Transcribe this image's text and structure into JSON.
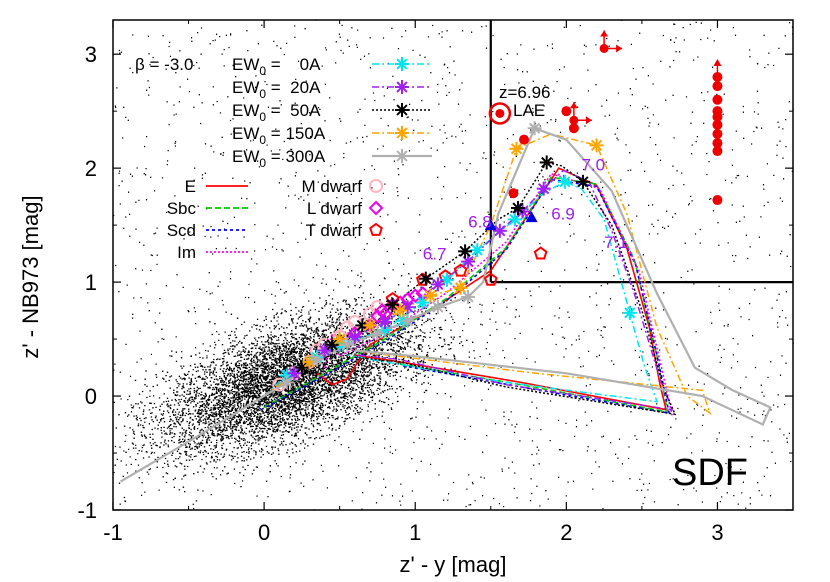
{
  "chart_data": {
    "type": "scatter",
    "panel_label": "SDF",
    "xlabel": "z' - y [mag]",
    "ylabel": "z' - NB973 [mag]",
    "xlim": [
      -1,
      3.5
    ],
    "ylim": [
      -1,
      3.3
    ],
    "x_ticks": [
      "-1",
      "0",
      "1",
      "2",
      "3"
    ],
    "y_ticks": [
      "-1",
      "0",
      "1",
      "2",
      "3"
    ],
    "selection_criteria": {
      "x_min": 1.5,
      "y_min": 1.0
    },
    "beta_label": "β = -3.0",
    "lae_tracks": [
      {
        "name": "EW0 = 0A",
        "label_main": "EW",
        "label_sub": "0",
        "label_rest": " =    0A",
        "color": "#00e5ee",
        "marker": "asterisk",
        "redshift_points": [
          [
            2.42,
            0.73
          ],
          [
            1.99,
            1.88
          ],
          [
            1.66,
            1.55
          ],
          [
            1.41,
            1.28
          ],
          [
            1.21,
            1.02
          ],
          [
            1.05,
            0.82
          ],
          [
            0.92,
            0.66
          ],
          [
            0.8,
            0.58
          ],
          [
            0.5,
            0.45
          ],
          [
            0.35,
            0.34
          ],
          [
            0.15,
            0.18
          ]
        ],
        "curve": [
          [
            0.0,
            0.0
          ],
          [
            0.15,
            0.18
          ],
          [
            0.35,
            0.34
          ],
          [
            0.5,
            0.45
          ],
          [
            0.8,
            0.58
          ],
          [
            1.05,
            0.82
          ],
          [
            1.21,
            1.02
          ],
          [
            1.41,
            1.28
          ],
          [
            1.66,
            1.55
          ],
          [
            1.85,
            1.78
          ],
          [
            1.99,
            1.88
          ],
          [
            2.1,
            1.82
          ],
          [
            2.25,
            1.55
          ],
          [
            2.42,
            0.73
          ],
          [
            2.52,
            0.25
          ],
          [
            2.6,
            -0.05
          ],
          [
            1.6,
            0.12
          ],
          [
            0.8,
            0.3
          ],
          [
            0.55,
            0.36
          ]
        ]
      },
      {
        "name": "EW0 = 20A",
        "label_main": "EW",
        "label_sub": "0",
        "label_rest": " =  20A",
        "color": "#a020f0",
        "marker": "asterisk",
        "redshift_points": [
          [
            1.85,
            1.82
          ],
          [
            1.71,
            1.62
          ],
          [
            1.56,
            1.45
          ],
          [
            1.35,
            1.18
          ],
          [
            1.15,
            0.98
          ],
          [
            0.95,
            0.78
          ],
          [
            0.8,
            0.65
          ],
          [
            0.6,
            0.52
          ],
          [
            0.4,
            0.4
          ],
          [
            0.2,
            0.2
          ]
        ],
        "curve": [
          [
            0.0,
            0.0
          ],
          [
            0.2,
            0.2
          ],
          [
            0.4,
            0.4
          ],
          [
            0.6,
            0.52
          ],
          [
            0.8,
            0.65
          ],
          [
            0.95,
            0.78
          ],
          [
            1.15,
            0.98
          ],
          [
            1.35,
            1.18
          ],
          [
            1.56,
            1.45
          ],
          [
            1.71,
            1.62
          ],
          [
            1.85,
            1.82
          ],
          [
            1.98,
            1.98
          ],
          [
            2.15,
            1.88
          ],
          [
            2.3,
            1.45
          ],
          [
            2.45,
            0.9
          ],
          [
            2.62,
            0.15
          ],
          [
            2.7,
            -0.12
          ],
          [
            1.6,
            0.1
          ],
          [
            0.9,
            0.32
          ],
          [
            0.62,
            0.36
          ]
        ]
      },
      {
        "name": "EW0 = 50A",
        "label_main": "EW",
        "label_sub": "0",
        "label_rest": " =  50A",
        "color": "#000000",
        "marker": "asterisk",
        "redshift_points": [
          [
            2.11,
            1.88
          ],
          [
            1.87,
            2.05
          ],
          [
            1.68,
            1.65
          ],
          [
            1.33,
            1.27
          ],
          [
            1.07,
            1.03
          ],
          [
            0.85,
            0.8
          ],
          [
            0.65,
            0.62
          ],
          [
            0.45,
            0.45
          ],
          [
            0.25,
            0.25
          ]
        ],
        "curve": [
          [
            0.0,
            0.0
          ],
          [
            0.25,
            0.25
          ],
          [
            0.45,
            0.45
          ],
          [
            0.65,
            0.62
          ],
          [
            0.85,
            0.8
          ],
          [
            1.07,
            1.03
          ],
          [
            1.33,
            1.27
          ],
          [
            1.55,
            1.55
          ],
          [
            1.68,
            1.65
          ],
          [
            1.87,
            2.05
          ],
          [
            1.97,
            2.02
          ],
          [
            2.11,
            1.88
          ],
          [
            2.3,
            1.5
          ],
          [
            2.5,
            0.75
          ],
          [
            2.65,
            0.05
          ],
          [
            2.72,
            -0.16
          ],
          [
            1.6,
            0.08
          ],
          [
            0.9,
            0.3
          ],
          [
            0.6,
            0.34
          ]
        ]
      },
      {
        "name": "EW0 = 150A",
        "label_main": "EW",
        "label_sub": "0",
        "label_rest": " = 150A",
        "color": "#ffa500",
        "marker": "asterisk",
        "redshift_points": [
          [
            2.2,
            2.2
          ],
          [
            1.67,
            2.17
          ],
          [
            1.3,
            0.95
          ],
          [
            1.1,
            0.88
          ],
          [
            0.9,
            0.75
          ],
          [
            0.7,
            0.62
          ],
          [
            0.5,
            0.5
          ],
          [
            0.3,
            0.3
          ]
        ],
        "curve": [
          [
            0.0,
            0.0
          ],
          [
            0.3,
            0.3
          ],
          [
            0.5,
            0.5
          ],
          [
            0.7,
            0.62
          ],
          [
            0.9,
            0.75
          ],
          [
            1.1,
            0.88
          ],
          [
            1.3,
            0.95
          ],
          [
            1.5,
            1.5
          ],
          [
            1.67,
            2.17
          ],
          [
            1.9,
            2.3
          ],
          [
            2.2,
            2.2
          ],
          [
            2.4,
            1.6
          ],
          [
            2.6,
            0.6
          ],
          [
            2.8,
            0.0
          ],
          [
            2.95,
            -0.15
          ],
          [
            2.9,
            0.05
          ],
          [
            1.8,
            0.2
          ],
          [
            1.0,
            0.33
          ],
          [
            0.7,
            0.38
          ]
        ]
      },
      {
        "name": "EW0 = 300A",
        "label_main": "EW",
        "label_sub": "0",
        "label_rest": " = 300A",
        "color": "#b0b0b0",
        "marker": "asterisk",
        "redshift_points": [
          [
            1.79,
            2.35
          ],
          [
            1.35,
            0.87
          ],
          [
            1.15,
            0.78
          ],
          [
            0.95,
            0.66
          ],
          [
            0.75,
            0.55
          ],
          [
            0.55,
            0.45
          ],
          [
            0.35,
            0.32
          ],
          [
            0.15,
            0.12
          ]
        ],
        "curve": [
          [
            -0.95,
            -0.75
          ],
          [
            -0.5,
            -0.4
          ],
          [
            0.0,
            0.0
          ],
          [
            0.15,
            0.12
          ],
          [
            0.35,
            0.32
          ],
          [
            0.55,
            0.45
          ],
          [
            0.75,
            0.55
          ],
          [
            0.95,
            0.66
          ],
          [
            1.15,
            0.78
          ],
          [
            1.35,
            0.87
          ],
          [
            1.45,
            1.0
          ],
          [
            1.55,
            1.6
          ],
          [
            1.79,
            2.35
          ],
          [
            2.0,
            2.25
          ],
          [
            2.3,
            1.8
          ],
          [
            2.6,
            0.9
          ],
          [
            2.85,
            0.25
          ],
          [
            3.1,
            0.05
          ],
          [
            3.35,
            -0.1
          ],
          [
            3.3,
            -0.25
          ],
          [
            2.9,
            0.0
          ],
          [
            2.0,
            0.2
          ],
          [
            1.0,
            0.35
          ],
          [
            0.6,
            0.4
          ]
        ]
      }
    ],
    "galaxy_templates": [
      {
        "name": "E",
        "color": "#ff0000",
        "dash": "",
        "curve": [
          [
            0.35,
            0.2
          ],
          [
            0.45,
            0.1
          ],
          [
            0.55,
            0.15
          ],
          [
            0.62,
            0.3
          ],
          [
            0.7,
            0.45
          ],
          [
            1.1,
            0.75
          ],
          [
            1.5,
            1.1
          ],
          [
            1.75,
            1.6
          ],
          [
            1.95,
            2.0
          ],
          [
            2.2,
            1.85
          ],
          [
            2.4,
            1.3
          ],
          [
            2.55,
            0.6
          ],
          [
            2.62,
            0.1
          ],
          [
            2.66,
            -0.12
          ],
          [
            1.7,
            0.12
          ],
          [
            0.9,
            0.3
          ],
          [
            0.6,
            0.36
          ]
        ]
      },
      {
        "name": "Sbc",
        "color": "#00cc00",
        "dash": "6 3",
        "curve": [
          [
            0.0,
            -0.1
          ],
          [
            0.4,
            0.2
          ],
          [
            0.8,
            0.5
          ],
          [
            1.2,
            0.85
          ],
          [
            1.6,
            1.3
          ],
          [
            1.9,
            1.92
          ],
          [
            2.2,
            1.86
          ],
          [
            2.45,
            1.2
          ],
          [
            2.6,
            0.35
          ],
          [
            2.67,
            -0.14
          ],
          [
            1.7,
            0.1
          ],
          [
            0.9,
            0.28
          ]
        ]
      },
      {
        "name": "Scd",
        "color": "#0000ff",
        "dash": "3 3",
        "curve": [
          [
            -0.02,
            -0.12
          ],
          [
            0.4,
            0.18
          ],
          [
            0.8,
            0.48
          ],
          [
            1.2,
            0.83
          ],
          [
            1.6,
            1.28
          ],
          [
            1.9,
            1.9
          ],
          [
            2.2,
            1.84
          ],
          [
            2.46,
            1.15
          ],
          [
            2.61,
            0.3
          ],
          [
            2.68,
            -0.15
          ],
          [
            1.7,
            0.08
          ],
          [
            0.9,
            0.27
          ]
        ]
      },
      {
        "name": "Im",
        "color": "#ff00ff",
        "dash": "2 2",
        "curve": [
          [
            0.4,
            0.25
          ],
          [
            0.45,
            0.55
          ],
          [
            0.5,
            0.35
          ],
          [
            0.8,
            0.55
          ],
          [
            1.2,
            0.9
          ],
          [
            1.6,
            1.35
          ],
          [
            1.9,
            1.95
          ],
          [
            2.22,
            1.82
          ],
          [
            2.48,
            1.1
          ],
          [
            2.63,
            0.25
          ],
          [
            2.7,
            -0.17
          ]
        ]
      }
    ],
    "dwarf_legend": [
      {
        "name": "M dwarf",
        "color": "#ffb6c1",
        "marker": "circle"
      },
      {
        "name": "L dwarf",
        "color": "#ee00ee",
        "marker": "diamond"
      },
      {
        "name": "T dwarf",
        "color": "#ff0000",
        "marker": "pentagon"
      }
    ],
    "m_dwarfs": [
      [
        0.1,
        0.1
      ],
      [
        0.2,
        0.2
      ],
      [
        0.3,
        0.3
      ],
      [
        0.35,
        0.4
      ],
      [
        0.4,
        0.45
      ],
      [
        0.5,
        0.52
      ],
      [
        0.55,
        0.6
      ],
      [
        0.6,
        0.65
      ],
      [
        0.7,
        0.72
      ],
      [
        0.75,
        0.78
      ]
    ],
    "l_dwarfs": [
      [
        0.6,
        0.55
      ],
      [
        0.7,
        0.62
      ],
      [
        0.75,
        0.7
      ],
      [
        0.8,
        0.72
      ],
      [
        0.85,
        0.8
      ],
      [
        0.9,
        0.82
      ],
      [
        0.95,
        0.85
      ],
      [
        1.0,
        0.88
      ],
      [
        1.05,
        0.9
      ],
      [
        0.78,
        0.75
      ]
    ],
    "t_dwarfs": [
      [
        0.85,
        0.85
      ],
      [
        1.05,
        1.02
      ],
      [
        1.2,
        1.05
      ],
      [
        1.3,
        1.1
      ],
      [
        1.5,
        1.02
      ],
      [
        1.83,
        1.25
      ]
    ],
    "lae_marker": {
      "label_line1": "z=6.96",
      "label_line2": "LAE",
      "x": 1.56,
      "y": 2.48
    },
    "redshift_labels": [
      {
        "text": "6.7",
        "x": 1.05,
        "y": 1.2
      },
      {
        "text": "6.8",
        "x": 1.35,
        "y": 1.48
      },
      {
        "text": "6.9",
        "x": 1.9,
        "y": 1.55
      },
      {
        "text": "7.0",
        "x": 2.1,
        "y": 1.98
      },
      {
        "text": "7.1",
        "x": 2.25,
        "y": 1.3
      }
    ],
    "red_candidates": [
      [
        1.65,
        1.78
      ],
      [
        1.72,
        2.25
      ],
      [
        2.0,
        2.5
      ],
      [
        2.05,
        2.35
      ],
      [
        3.0,
        2.8
      ],
      [
        3.0,
        2.72
      ],
      [
        3.0,
        2.6
      ],
      [
        3.0,
        2.5
      ],
      [
        3.0,
        2.45
      ],
      [
        3.0,
        2.38
      ],
      [
        3.0,
        2.3
      ],
      [
        3.0,
        2.22
      ],
      [
        3.0,
        2.15
      ],
      [
        3.0,
        1.72
      ]
    ],
    "red_limit_arrows": [
      [
        2.25,
        3.05
      ],
      [
        2.05,
        2.42
      ]
    ],
    "blue_triangles": [
      [
        1.5,
        1.5
      ],
      [
        1.77,
        1.57
      ]
    ]
  }
}
